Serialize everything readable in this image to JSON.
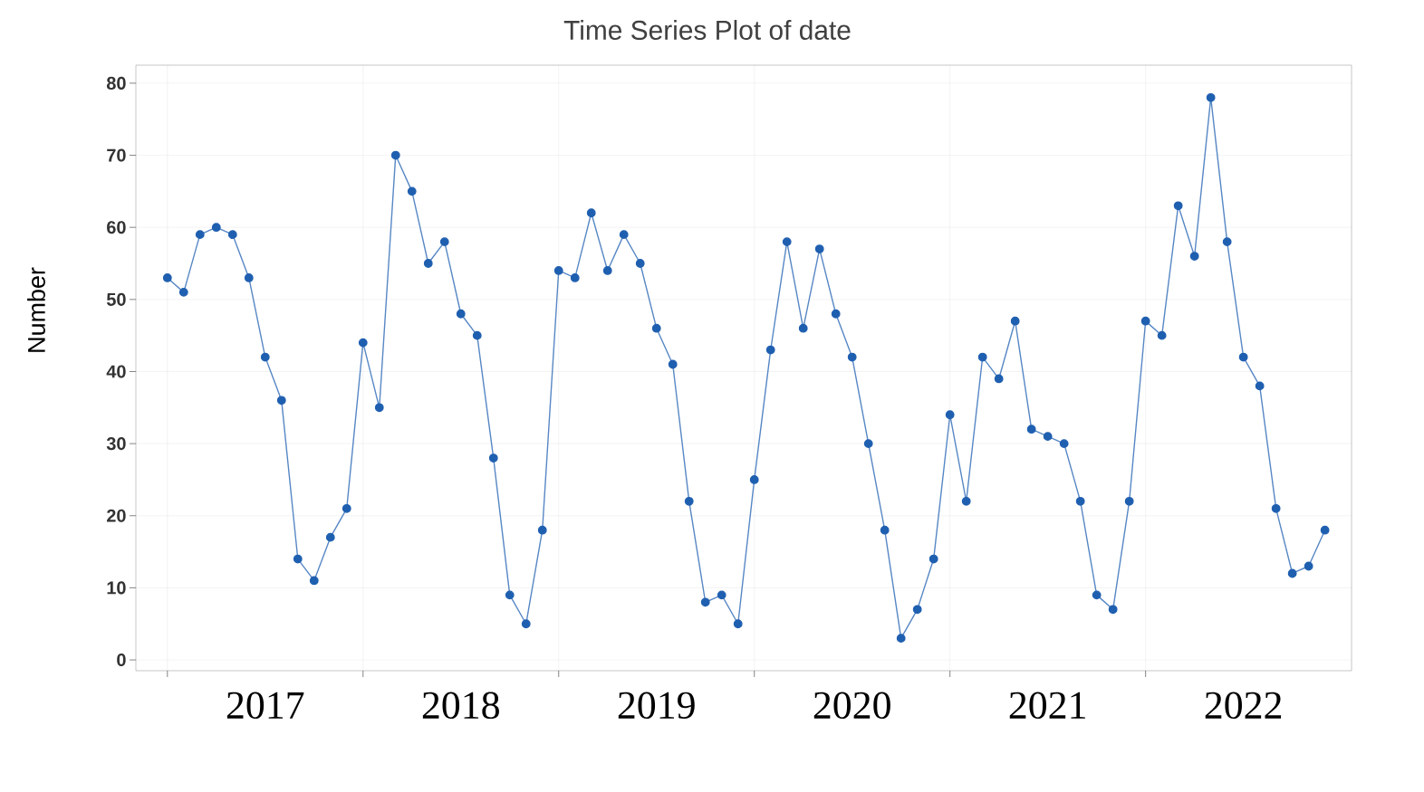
{
  "chart_data": {
    "type": "line",
    "title": "Time Series Plot of date",
    "ylabel": "Number",
    "x": [
      "2017-01",
      "2017-02",
      "2017-03",
      "2017-04",
      "2017-05",
      "2017-06",
      "2017-07",
      "2017-08",
      "2017-09",
      "2017-10",
      "2017-11",
      "2017-12",
      "2018-01",
      "2018-02",
      "2018-03",
      "2018-04",
      "2018-05",
      "2018-06",
      "2018-07",
      "2018-08",
      "2018-09",
      "2018-10",
      "2018-11",
      "2018-12",
      "2019-01",
      "2019-02",
      "2019-03",
      "2019-04",
      "2019-05",
      "2019-06",
      "2019-07",
      "2019-08",
      "2019-09",
      "2019-10",
      "2019-11",
      "2019-12",
      "2020-01",
      "2020-02",
      "2020-03",
      "2020-04",
      "2020-05",
      "2020-06",
      "2020-07",
      "2020-08",
      "2020-09",
      "2020-10",
      "2020-11",
      "2020-12",
      "2021-01",
      "2021-02",
      "2021-03",
      "2021-04",
      "2021-05",
      "2021-06",
      "2021-07",
      "2021-08",
      "2021-09",
      "2021-10",
      "2021-11",
      "2021-12",
      "2022-01",
      "2022-02",
      "2022-03",
      "2022-04",
      "2022-05",
      "2022-06",
      "2022-07",
      "2022-08",
      "2022-09",
      "2022-10",
      "2022-11",
      "2022-12"
    ],
    "series": [
      {
        "color": "#1f5fb0",
        "values": [
          53,
          51,
          59,
          60,
          59,
          53,
          42,
          36,
          14,
          11,
          17,
          21,
          44,
          35,
          70,
          65,
          55,
          58,
          48,
          45,
          28,
          9,
          5,
          18,
          54,
          53,
          62,
          54,
          59,
          55,
          46,
          41,
          22,
          8,
          9,
          5,
          25,
          43,
          58,
          46,
          57,
          48,
          42,
          30,
          18,
          3,
          7,
          14,
          34,
          22,
          42,
          39,
          47,
          32,
          31,
          30,
          22,
          9,
          7,
          22,
          47,
          45,
          63,
          56,
          78,
          58,
          42,
          38,
          21,
          12,
          13,
          18
        ]
      }
    ],
    "xlim": [
      "2016-11-03",
      "2023-01-20"
    ],
    "xticks": [
      {
        "value": "2017-01",
        "label": null
      },
      {
        "value": "2017-07",
        "label": "2017"
      },
      {
        "value": "2018-01",
        "label": null
      },
      {
        "value": "2018-07",
        "label": "2018"
      },
      {
        "value": "2019-01",
        "label": null
      },
      {
        "value": "2019-07",
        "label": "2019"
      },
      {
        "value": "2020-01",
        "label": null
      },
      {
        "value": "2020-07",
        "label": "2020"
      },
      {
        "value": "2021-01",
        "label": null
      },
      {
        "value": "2021-07",
        "label": "2021"
      },
      {
        "value": "2022-01",
        "label": null
      },
      {
        "value": "2022-07",
        "label": "2022"
      }
    ],
    "ylim": [
      -1.5,
      82.5
    ],
    "yticks": [
      0,
      10,
      20,
      30,
      40,
      50,
      60,
      70,
      80
    ],
    "grid": true,
    "marker": "circle",
    "line_style": "solid"
  }
}
